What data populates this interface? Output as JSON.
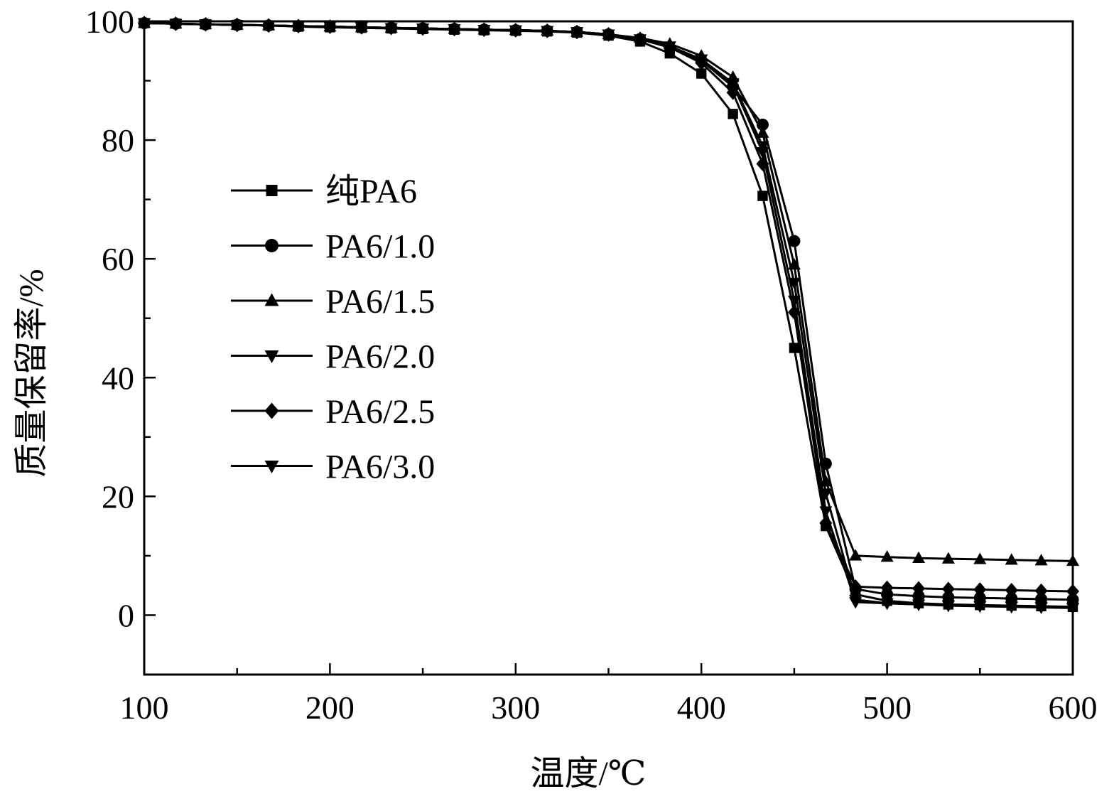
{
  "chart_data": {
    "type": "line",
    "xlabel": "温度/℃",
    "ylabel": "质量保留率/%",
    "xlim": [
      100,
      600
    ],
    "ylim": [
      -10,
      100
    ],
    "xticks": [
      100,
      200,
      300,
      400,
      500,
      600
    ],
    "yticks": [
      0,
      20,
      40,
      60,
      80,
      100
    ],
    "x_tick_labels": [
      "100",
      "200",
      "300",
      "400",
      "500",
      "600"
    ],
    "y_tick_labels": [
      "0",
      "20",
      "40",
      "60",
      "80",
      "100"
    ],
    "grid": false,
    "legend_position": "left",
    "x": [
      100,
      117,
      133,
      150,
      167,
      183,
      200,
      217,
      233,
      250,
      267,
      283,
      300,
      317,
      333,
      350,
      367,
      383,
      400,
      417,
      433,
      450,
      467,
      483,
      500,
      517,
      533,
      550,
      567,
      583,
      600
    ],
    "series": [
      {
        "name": "纯PA6",
        "marker": "square",
        "values": [
          99.7,
          99.6,
          99.5,
          99.4,
          99.3,
          99.1,
          99.0,
          98.9,
          98.8,
          98.7,
          98.6,
          98.5,
          98.4,
          98.3,
          98.1,
          97.6,
          96.6,
          94.6,
          91.2,
          84.4,
          70.6,
          45.0,
          15.0,
          3.5,
          2.4,
          2.0,
          1.8,
          1.7,
          1.6,
          1.5,
          1.4
        ]
      },
      {
        "name": "PA6/1.0",
        "marker": "circle",
        "values": [
          99.7,
          99.6,
          99.5,
          99.4,
          99.3,
          99.2,
          99.1,
          99.0,
          98.9,
          98.8,
          98.7,
          98.6,
          98.5,
          98.4,
          98.2,
          97.8,
          97.0,
          95.6,
          93.4,
          89.0,
          82.6,
          63.0,
          25.5,
          4.4,
          3.5,
          3.2,
          3.0,
          2.9,
          2.8,
          2.7,
          2.6
        ]
      },
      {
        "name": "PA6/1.5",
        "marker": "triangle-up",
        "values": [
          99.7,
          99.6,
          99.5,
          99.4,
          99.3,
          99.2,
          99.1,
          99.0,
          98.9,
          98.8,
          98.7,
          98.6,
          98.5,
          98.4,
          98.2,
          97.8,
          97.2,
          96.2,
          94.2,
          90.6,
          81.2,
          59.0,
          22.5,
          10.0,
          9.8,
          9.6,
          9.5,
          9.4,
          9.3,
          9.2,
          9.1
        ]
      },
      {
        "name": "PA6/2.0",
        "marker": "triangle-down",
        "values": [
          99.7,
          99.6,
          99.5,
          99.4,
          99.3,
          99.2,
          99.1,
          99.0,
          98.9,
          98.8,
          98.7,
          98.6,
          98.5,
          98.4,
          98.2,
          97.8,
          97.0,
          95.8,
          93.6,
          89.6,
          79.0,
          56.0,
          20.5,
          2.6,
          2.0,
          1.8,
          1.6,
          1.5,
          1.4,
          1.3,
          1.2
        ]
      },
      {
        "name": "PA6/2.5",
        "marker": "diamond",
        "values": [
          99.7,
          99.6,
          99.5,
          99.4,
          99.3,
          99.2,
          99.1,
          99.0,
          98.9,
          98.8,
          98.7,
          98.6,
          98.5,
          98.4,
          98.2,
          97.8,
          97.0,
          95.6,
          93.0,
          88.0,
          76.0,
          51.0,
          15.5,
          4.8,
          4.6,
          4.5,
          4.4,
          4.3,
          4.2,
          4.1,
          4.0
        ]
      },
      {
        "name": "PA6/3.0",
        "marker": "triangle-down",
        "values": [
          99.7,
          99.6,
          99.5,
          99.4,
          99.3,
          99.2,
          99.1,
          99.0,
          98.9,
          98.8,
          98.7,
          98.6,
          98.5,
          98.4,
          98.2,
          97.8,
          97.0,
          95.8,
          93.6,
          89.4,
          78.0,
          53.0,
          17.5,
          2.2,
          2.0,
          1.8,
          1.7,
          1.6,
          1.5,
          1.4,
          1.3
        ]
      }
    ]
  }
}
